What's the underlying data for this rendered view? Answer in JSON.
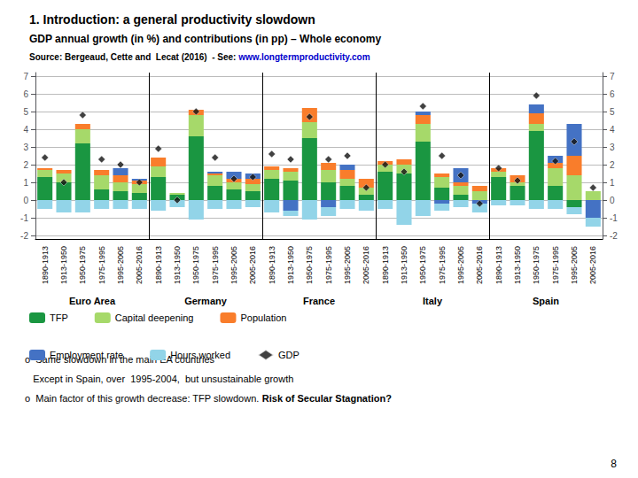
{
  "chart_data": {
    "type": "bar",
    "stacked": true,
    "title": "1. Introduction: a general productivity slowdown",
    "subtitle": "GDP annual growth (in %) and contributions (in pp) – Whole economy",
    "source": [
      {
        "text": "Source: Bergeaud, Cette and  Lecat (2016)  - See: "
      },
      {
        "text": "www.longtermproductivity.com",
        "color": "#0000cc"
      }
    ],
    "categories": [
      "1890-1913",
      "1913-1950",
      "1950-1975",
      "1975-1995",
      "1995-2005",
      "2005-2016",
      "1890-1913",
      "1913-1950",
      "1950-1975",
      "1975-1995",
      "1995-2005",
      "2005-2016",
      "1890-1913",
      "1913-1950",
      "1950-1975",
      "1975-1995",
      "1995-2005",
      "2005-2016",
      "1890-1913",
      "1913-1950",
      "1950-1975",
      "1975-1995",
      "1995-2005",
      "2005-2016",
      "1890-1913",
      "1913-1950",
      "1950-1975",
      "1975-1995",
      "1995-2005",
      "2005-2016"
    ],
    "groups": [
      "Euro Area",
      "Germany",
      "France",
      "Italy",
      "Spain"
    ],
    "series": [
      {
        "name": "TFP",
        "color": "#1a9641",
        "values": [
          1.3,
          1.0,
          3.2,
          0.6,
          0.5,
          0.4,
          1.3,
          0.3,
          3.6,
          0.8,
          0.6,
          0.5,
          1.2,
          1.1,
          3.5,
          1.0,
          0.8,
          0.3,
          1.6,
          1.5,
          3.3,
          0.7,
          0.3,
          0.0,
          1.3,
          0.8,
          3.9,
          0.8,
          -0.4,
          0.0
        ]
      },
      {
        "name": "Capital deepening",
        "color": "#a6d96a",
        "values": [
          0.4,
          0.5,
          0.8,
          0.8,
          0.5,
          0.5,
          0.6,
          0.1,
          1.2,
          0.6,
          0.4,
          0.4,
          0.5,
          0.5,
          0.9,
          0.7,
          0.4,
          0.4,
          0.4,
          0.5,
          1.0,
          0.6,
          0.5,
          0.5,
          0.3,
          0.2,
          0.4,
          1.0,
          1.4,
          0.5
        ]
      },
      {
        "name": "Population",
        "color": "#f97d2b",
        "values": [
          0.1,
          0.2,
          0.3,
          0.3,
          0.4,
          0.2,
          0.5,
          0.0,
          0.3,
          0.1,
          0.2,
          0.3,
          0.2,
          0.2,
          0.8,
          0.4,
          0.5,
          0.5,
          0.2,
          0.3,
          0.5,
          0.2,
          0.2,
          0.3,
          0.2,
          0.4,
          0.6,
          0.3,
          1.1,
          0.0
        ]
      },
      {
        "name": "Employment rate",
        "color": "#4472c4",
        "values": [
          0.0,
          0.0,
          0.0,
          0.0,
          0.4,
          0.1,
          0.0,
          0.0,
          0.0,
          0.1,
          0.4,
          0.3,
          0.0,
          -0.6,
          0.0,
          -0.4,
          0.3,
          0.0,
          0.0,
          0.0,
          0.2,
          -0.2,
          0.8,
          -0.2,
          0.0,
          0.0,
          0.5,
          0.4,
          1.8,
          -1.0
        ]
      },
      {
        "name": "Hours worked",
        "color": "#92d4e8",
        "values": [
          -0.5,
          -0.7,
          -0.7,
          -0.5,
          -0.5,
          -0.5,
          -0.6,
          -0.4,
          -1.1,
          -0.5,
          -0.5,
          -0.4,
          -0.7,
          -0.3,
          -1.1,
          -0.5,
          -0.5,
          -0.6,
          -0.5,
          -1.4,
          -0.9,
          -0.4,
          -0.4,
          -0.5,
          -0.3,
          -0.3,
          -0.5,
          -0.5,
          -0.4,
          -0.5
        ]
      },
      {
        "name": "GDP",
        "type": "scatter",
        "marker": "diamond",
        "color": "#111111",
        "values": [
          2.4,
          1.0,
          4.8,
          2.3,
          2.0,
          1.0,
          2.9,
          0.0,
          5.0,
          2.4,
          1.2,
          1.3,
          2.6,
          2.3,
          4.7,
          2.3,
          2.5,
          0.7,
          2.0,
          1.6,
          5.3,
          2.5,
          1.4,
          -0.2,
          1.8,
          1.1,
          5.9,
          2.2,
          3.3,
          0.7
        ]
      }
    ],
    "ylim": [
      -2.2,
      7.2
    ],
    "yticks": [
      -2,
      -1,
      0,
      1,
      2,
      3,
      4,
      5,
      6,
      7
    ],
    "y2lim": [
      -2.2,
      7.2
    ],
    "y2ticks": [
      -2,
      -1,
      0,
      1,
      2,
      3,
      4,
      5,
      6,
      7
    ],
    "grid": true,
    "legend": "bottom",
    "footer_lines": [
      [
        {
          "text": "o  Same slowdown in the main EA countries",
          "bold": false
        }
      ],
      [
        {
          "text": "   Except in Spain, over  1995-2004,  but unsustainable growth",
          "bold": false
        }
      ],
      [
        {
          "text": "o  Main factor of this growth decrease: TFP slowdown. ",
          "bold": false
        },
        {
          "text": "Risk of Secular Stagnation?",
          "bold": true
        }
      ]
    ],
    "page_number": "8"
  }
}
